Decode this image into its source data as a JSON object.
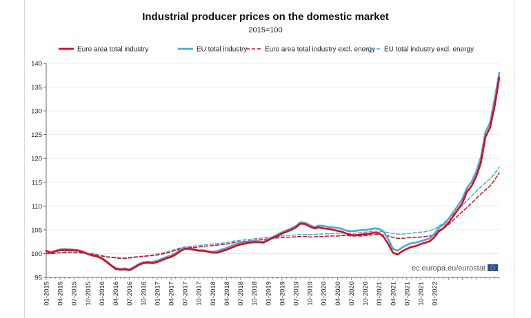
{
  "chart_data": {
    "type": "line",
    "title": "Industrial producer prices on the domestic market",
    "subtitle": "2015=100",
    "xlabel": "",
    "ylabel": "",
    "ylim": [
      95,
      140
    ],
    "yticks": [
      95,
      100,
      105,
      110,
      115,
      120,
      125,
      130,
      135,
      140
    ],
    "x_tick_labels": [
      "01-2015",
      "04-2015",
      "07-2015",
      "10-2015",
      "01-2016",
      "04-2016",
      "07-2016",
      "10-2016",
      "01-2017",
      "04-2017",
      "07-2017",
      "10-2017",
      "01-2018",
      "04-2018",
      "07-2018",
      "10-2018",
      "01-2019",
      "04-2019",
      "07-2019",
      "10-2019",
      "01-2020",
      "04-2020",
      "07-2020",
      "10-2020",
      "01-2021",
      "04-2021",
      "07-2021",
      "10-2021",
      "01-2022"
    ],
    "x_start": "01-2015",
    "x_end": "01-2022",
    "series": [
      {
        "name": "Euro area total industry",
        "color": "#e3001b",
        "dash": "solid",
        "values": [
          100.6,
          100.2,
          100.5,
          100.7,
          100.7,
          100.7,
          100.7,
          100.6,
          100.3,
          99.9,
          99.6,
          99.4,
          99.0,
          98.3,
          97.5,
          96.8,
          96.6,
          96.7,
          96.5,
          97.0,
          97.6,
          98.0,
          98.1,
          98.0,
          98.2,
          98.6,
          99.0,
          99.3,
          99.8,
          100.5,
          101.0,
          101.0,
          100.8,
          100.6,
          100.6,
          100.4,
          100.2,
          100.2,
          100.5,
          100.8,
          101.2,
          101.6,
          101.9,
          102.1,
          102.3,
          102.4,
          102.4,
          102.3,
          102.8,
          103.3,
          103.7,
          104.2,
          104.6,
          105.0,
          105.5,
          106.3,
          106.2,
          105.7,
          105.3,
          105.5,
          105.3,
          105.2,
          105.0,
          104.8,
          104.6,
          104.2,
          103.9,
          103.9,
          104.0,
          104.1,
          104.2,
          104.4,
          104.3,
          103.5,
          102.0,
          100.2,
          99.8,
          100.5,
          101.0,
          101.4,
          101.6,
          102.0,
          102.3,
          102.6,
          103.5,
          104.8,
          105.4,
          106.5,
          107.8,
          109.2,
          110.6,
          113.0,
          114.2,
          116.2,
          119.0,
          124.5,
          126.5,
          131.0,
          137.0
        ]
      },
      {
        "name": "EU total industry",
        "color": "#3aaed8",
        "dash": "solid",
        "values": [
          100.5,
          100.2,
          100.6,
          100.9,
          101.0,
          100.9,
          100.8,
          100.7,
          100.4,
          100.0,
          99.7,
          99.5,
          99.1,
          98.4,
          97.6,
          97.0,
          96.8,
          96.9,
          96.7,
          97.2,
          97.8,
          98.2,
          98.3,
          98.2,
          98.5,
          98.9,
          99.3,
          99.6,
          100.1,
          100.8,
          101.2,
          101.1,
          100.9,
          100.7,
          100.7,
          100.5,
          100.4,
          100.5,
          100.9,
          101.2,
          101.6,
          102.0,
          102.2,
          102.4,
          102.6,
          102.7,
          102.6,
          102.5,
          103.0,
          103.5,
          104.0,
          104.5,
          104.9,
          105.3,
          105.8,
          106.6,
          106.5,
          106.0,
          105.6,
          105.9,
          105.8,
          105.6,
          105.5,
          105.4,
          105.2,
          104.8,
          104.7,
          104.8,
          104.9,
          105.0,
          105.1,
          105.3,
          105.2,
          104.6,
          103.0,
          101.0,
          100.6,
          101.3,
          101.8,
          102.2,
          102.3,
          102.6,
          102.9,
          103.2,
          104.2,
          105.5,
          106.1,
          107.3,
          108.6,
          110.0,
          111.5,
          113.8,
          115.1,
          117.2,
          120.2,
          125.5,
          127.5,
          132.5,
          138.0
        ]
      },
      {
        "name": "Euro area total industry excl. energy",
        "color": "#e3001b",
        "dash": "dashed",
        "values": [
          100.0,
          100.0,
          100.1,
          100.2,
          100.2,
          100.3,
          100.3,
          100.2,
          100.1,
          100.0,
          99.9,
          99.7,
          99.5,
          99.3,
          99.2,
          99.1,
          99.0,
          99.0,
          99.1,
          99.2,
          99.3,
          99.4,
          99.5,
          99.6,
          99.7,
          99.9,
          100.1,
          100.4,
          100.7,
          101.0,
          101.2,
          101.3,
          101.3,
          101.4,
          101.5,
          101.6,
          101.7,
          101.8,
          101.9,
          102.0,
          102.2,
          102.4,
          102.5,
          102.6,
          102.7,
          102.8,
          102.9,
          103.0,
          103.1,
          103.2,
          103.3,
          103.4,
          103.4,
          103.5,
          103.5,
          103.6,
          103.6,
          103.5,
          103.5,
          103.6,
          103.6,
          103.7,
          103.7,
          103.7,
          103.8,
          103.8,
          103.7,
          103.7,
          103.7,
          103.8,
          103.9,
          104.0,
          104.0,
          103.9,
          103.7,
          103.4,
          103.2,
          103.2,
          103.3,
          103.4,
          103.4,
          103.5,
          103.6,
          103.7,
          104.0,
          104.6,
          105.3,
          106.1,
          107.0,
          107.9,
          108.8,
          109.7,
          110.6,
          111.6,
          112.5,
          113.4,
          114.2,
          115.5,
          117.0
        ]
      },
      {
        "name": "EU total industry excl. energy",
        "color": "#3aaed8",
        "dash": "dashed",
        "values": [
          100.0,
          100.0,
          100.1,
          100.2,
          100.3,
          100.3,
          100.3,
          100.3,
          100.2,
          100.1,
          100.0,
          99.8,
          99.6,
          99.4,
          99.3,
          99.2,
          99.1,
          99.1,
          99.2,
          99.3,
          99.4,
          99.5,
          99.6,
          99.7,
          99.9,
          100.1,
          100.3,
          100.6,
          100.9,
          101.2,
          101.4,
          101.5,
          101.6,
          101.7,
          101.8,
          101.9,
          102.0,
          102.1,
          102.2,
          102.3,
          102.5,
          102.7,
          102.8,
          102.9,
          103.0,
          103.1,
          103.2,
          103.3,
          103.4,
          103.5,
          103.6,
          103.7,
          103.8,
          103.9,
          103.9,
          104.0,
          104.0,
          104.0,
          104.0,
          104.1,
          104.1,
          104.2,
          104.2,
          104.3,
          104.3,
          104.3,
          104.3,
          104.3,
          104.4,
          104.5,
          104.6,
          104.7,
          104.7,
          104.6,
          104.4,
          104.2,
          104.1,
          104.1,
          104.2,
          104.3,
          104.4,
          104.5,
          104.6,
          104.8,
          105.2,
          105.8,
          106.5,
          107.3,
          108.2,
          109.1,
          110.1,
          111.1,
          112.1,
          113.1,
          114.0,
          114.9,
          115.7,
          116.8,
          118.2
        ]
      }
    ],
    "source": "ec.europa.eu/eurostat"
  }
}
